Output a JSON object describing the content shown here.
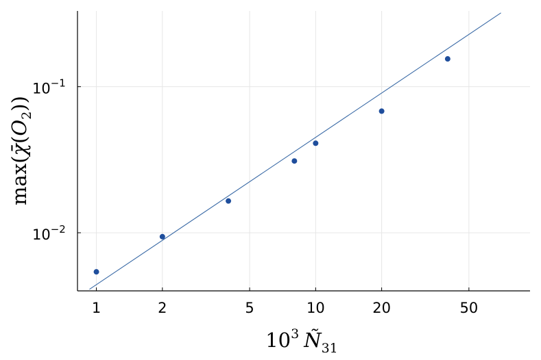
{
  "chart_data": {
    "type": "scatter",
    "xlabel": {
      "base": "10",
      "exp": "3",
      "symbol": "Ñ",
      "sub": "31"
    },
    "ylabel": {
      "pre": "max(",
      "symbol": "χ̄",
      "mid": "(",
      "var": "O",
      "sub": "2",
      "post": "))"
    },
    "x_scale": "log",
    "y_scale": "log",
    "xlim": [
      0.82,
      95
    ],
    "ylim": [
      0.004,
      0.33
    ],
    "x_ticks": [
      {
        "value": 1,
        "label": "1"
      },
      {
        "value": 2,
        "label": "2"
      },
      {
        "value": 5,
        "label": "5"
      },
      {
        "value": 10,
        "label": "10"
      },
      {
        "value": 20,
        "label": "20"
      },
      {
        "value": 50,
        "label": "50"
      }
    ],
    "y_ticks": [
      {
        "value": 0.01,
        "base": "10",
        "exp": "−2"
      },
      {
        "value": 0.1,
        "base": "10",
        "exp": "−1"
      }
    ],
    "grid": true,
    "legend": "none",
    "series": [
      {
        "kind": "points",
        "color": "#1f4e9c",
        "points": [
          {
            "x": 1,
            "y": 0.0054
          },
          {
            "x": 2,
            "y": 0.0094
          },
          {
            "x": 4,
            "y": 0.0165
          },
          {
            "x": 8,
            "y": 0.031
          },
          {
            "x": 10,
            "y": 0.041
          },
          {
            "x": 20,
            "y": 0.068
          },
          {
            "x": 40,
            "y": 0.155
          }
        ]
      },
      {
        "kind": "line",
        "color": "#3a6aa6",
        "points": [
          {
            "x": 0.93,
            "y": 0.0041
          },
          {
            "x": 70,
            "y": 0.32
          }
        ]
      }
    ]
  }
}
